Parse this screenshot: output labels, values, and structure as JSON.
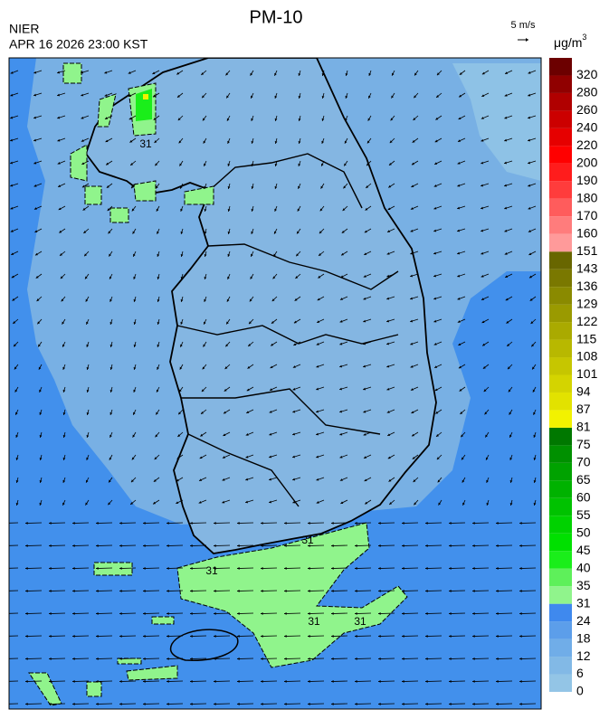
{
  "header": {
    "title": "PM-10",
    "agency": "NIER",
    "timestamp": "APR 16 2026 23:00 KST",
    "wind_scale": "5 m/s"
  },
  "colorbar": {
    "unit": "μg/m",
    "unit_exponent": "3",
    "levels": [
      0,
      6,
      12,
      18,
      24,
      31,
      35,
      40,
      45,
      50,
      55,
      60,
      65,
      70,
      75,
      81,
      87,
      94,
      101,
      108,
      115,
      122,
      129,
      136,
      143,
      151,
      160,
      170,
      180,
      190,
      200,
      220,
      240,
      260,
      280,
      320
    ],
    "colors": [
      "#93c5e6",
      "#82b9e6",
      "#70ade8",
      "#5c9eea",
      "#3f89ee",
      "#90f48c",
      "#5ef05a",
      "#1aee1a",
      "#00e000",
      "#00d200",
      "#00c200",
      "#00b200",
      "#00a200",
      "#009000",
      "#007800",
      "#f2f200",
      "#e2e200",
      "#d4d400",
      "#c6c600",
      "#b8b800",
      "#aaaa00",
      "#9a9a00",
      "#8a8a00",
      "#7a7800",
      "#686600",
      "#ff9a9a",
      "#ff7c7c",
      "#ff5c5c",
      "#ff3c3c",
      "#ff1c1c",
      "#ff0000",
      "#e60000",
      "#cc0000",
      "#b00000",
      "#900000",
      "#6c0000"
    ]
  },
  "contour_labels": [
    "31",
    "31",
    "31",
    "31",
    "31"
  ]
}
